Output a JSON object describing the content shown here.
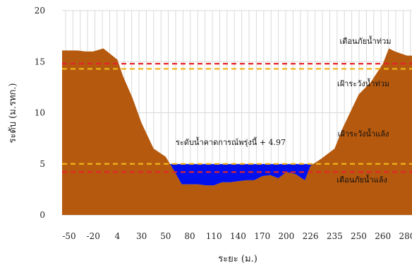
{
  "chart_data": {
    "type": "area",
    "title": "",
    "xlabel": "ระยะ (ม.)",
    "ylabel": "ระดับ (ม.รทก.)",
    "ylim": [
      0,
      20
    ],
    "yticks": [
      0,
      5,
      10,
      15,
      20
    ],
    "grid": true,
    "x_tick_labels": [
      "-50",
      "-20",
      "4",
      "30",
      "50",
      "80",
      "110",
      "140",
      "170",
      "200",
      "226",
      "235",
      "250",
      "260",
      "280"
    ],
    "cross_section": {
      "x": [
        "-50",
        "-40",
        "-30",
        "-20",
        "-10",
        "4",
        "10",
        "20",
        "30",
        "40",
        "50",
        "60",
        "70",
        "80",
        "90",
        "100",
        "110",
        "120",
        "130",
        "140",
        "150",
        "160",
        "170",
        "180",
        "190",
        "200",
        "210",
        "220",
        "226",
        "230",
        "235",
        "240",
        "250",
        "255",
        "260",
        "265",
        "270",
        "280"
      ],
      "elevation": [
        16.1,
        16.1,
        16.0,
        16.0,
        16.3,
        15.2,
        13.6,
        11.5,
        9.0,
        6.5,
        5.7,
        4.4,
        3.0,
        3.0,
        3.0,
        2.9,
        2.9,
        3.2,
        3.2,
        3.3,
        3.4,
        3.4,
        3.8,
        3.9,
        3.6,
        4.2,
        4.0,
        3.4,
        4.8,
        5.5,
        6.5,
        8.5,
        11.8,
        13.0,
        14.8,
        16.3,
        16.0,
        15.6
      ],
      "color": "#b5590f"
    },
    "water": {
      "level": 4.97,
      "label": "ระดับน้ำคาดการณ์พรุ่งนี้ + 4.97",
      "color": "#0011ee"
    },
    "threshold_lines": [
      {
        "label": "เตือนภัยน้ำท่วม",
        "value": 14.8,
        "color": "#e8232a"
      },
      {
        "label": "เฝ้าระวังน้ำท่วม",
        "value": 14.3,
        "color": "#f2b31a"
      },
      {
        "label": "เฝ้าระวังน้ำแล้ง",
        "value": 5.0,
        "color": "#f2b31a"
      },
      {
        "label": "เตือนภัยน้ำแล้ง",
        "value": 4.2,
        "color": "#e8232a"
      }
    ]
  }
}
